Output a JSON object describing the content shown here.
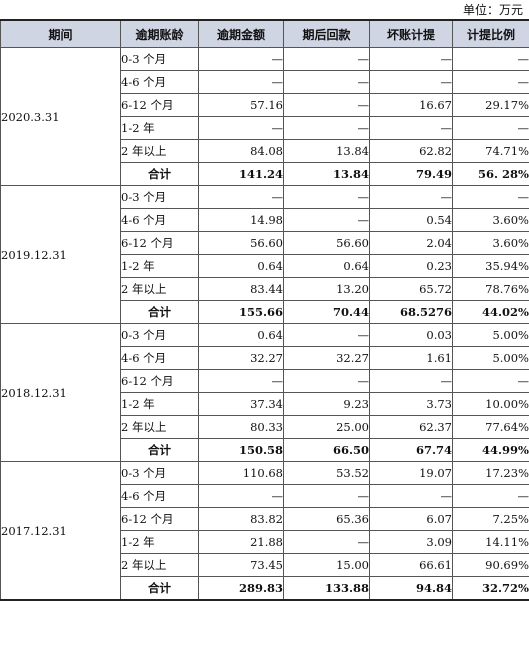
{
  "unit_label": "单位：万元",
  "headers": [
    "期间",
    "逾期账龄",
    "逾期金额",
    "期后回款",
    "坏账计提",
    "计提比例"
  ],
  "groups": [
    {
      "period": "2020.3.31",
      "rows": [
        {
          "age": "0-3 个月",
          "amount": "—",
          "collected": "—",
          "provision": "—",
          "ratio": "—"
        },
        {
          "age": "4-6 个月",
          "amount": "—",
          "collected": "—",
          "provision": "—",
          "ratio": "—"
        },
        {
          "age": "6-12 个月",
          "amount": "57.16",
          "collected": "—",
          "provision": "16.67",
          "ratio": "29.17%"
        },
        {
          "age": "1-2 年",
          "amount": "—",
          "collected": "—",
          "provision": "—",
          "ratio": "—"
        },
        {
          "age": "2 年以上",
          "amount": "84.08",
          "collected": "13.84",
          "provision": "62.82",
          "ratio": "74.71%"
        },
        {
          "age": "合计",
          "amount": "141.24",
          "collected": "13.84",
          "provision": "79.49",
          "ratio": "56. 28%",
          "total": true
        }
      ]
    },
    {
      "period": "2019.12.31",
      "rows": [
        {
          "age": "0-3 个月",
          "amount": "—",
          "collected": "—",
          "provision": "—",
          "ratio": "—"
        },
        {
          "age": "4-6 个月",
          "amount": "14.98",
          "collected": "—",
          "provision": "0.54",
          "ratio": "3.60%"
        },
        {
          "age": "6-12 个月",
          "amount": "56.60",
          "collected": "56.60",
          "provision": "2.04",
          "ratio": "3.60%"
        },
        {
          "age": "1-2 年",
          "amount": "0.64",
          "collected": "0.64",
          "provision": "0.23",
          "ratio": "35.94%"
        },
        {
          "age": "2 年以上",
          "amount": "83.44",
          "collected": "13.20",
          "provision": "65.72",
          "ratio": "78.76%"
        },
        {
          "age": "合计",
          "amount": "155.66",
          "collected": "70.44",
          "provision": "68.5276",
          "ratio": "44.02%",
          "total": true
        }
      ]
    },
    {
      "period": "2018.12.31",
      "rows": [
        {
          "age": "0-3 个月",
          "amount": "0.64",
          "collected": "—",
          "provision": "0.03",
          "ratio": "5.00%"
        },
        {
          "age": "4-6 个月",
          "amount": "32.27",
          "collected": "32.27",
          "provision": "1.61",
          "ratio": "5.00%"
        },
        {
          "age": "6-12 个月",
          "amount": "—",
          "collected": "—",
          "provision": "—",
          "ratio": "—"
        },
        {
          "age": "1-2 年",
          "amount": "37.34",
          "collected": "9.23",
          "provision": "3.73",
          "ratio": "10.00%"
        },
        {
          "age": "2 年以上",
          "amount": "80.33",
          "collected": "25.00",
          "provision": "62.37",
          "ratio": "77.64%"
        },
        {
          "age": "合计",
          "amount": "150.58",
          "collected": "66.50",
          "provision": "67.74",
          "ratio": "44.99%",
          "total": true
        }
      ]
    },
    {
      "period": "2017.12.31",
      "rows": [
        {
          "age": "0-3 个月",
          "amount": "110.68",
          "collected": "53.52",
          "provision": "19.07",
          "ratio": "17.23%"
        },
        {
          "age": "4-6 个月",
          "amount": "—",
          "collected": "—",
          "provision": "—",
          "ratio": "—"
        },
        {
          "age": "6-12 个月",
          "amount": "83.82",
          "collected": "65.36",
          "provision": "6.07",
          "ratio": "7.25%"
        },
        {
          "age": "1-2 年",
          "amount": "21.88",
          "collected": "—",
          "provision": "3.09",
          "ratio": "14.11%"
        },
        {
          "age": "2 年以上",
          "amount": "73.45",
          "collected": "15.00",
          "provision": "66.61",
          "ratio": "90.69%"
        },
        {
          "age": "合计",
          "amount": "289.83",
          "collected": "133.88",
          "provision": "94.84",
          "ratio": "32.72%",
          "total": true
        }
      ]
    }
  ]
}
